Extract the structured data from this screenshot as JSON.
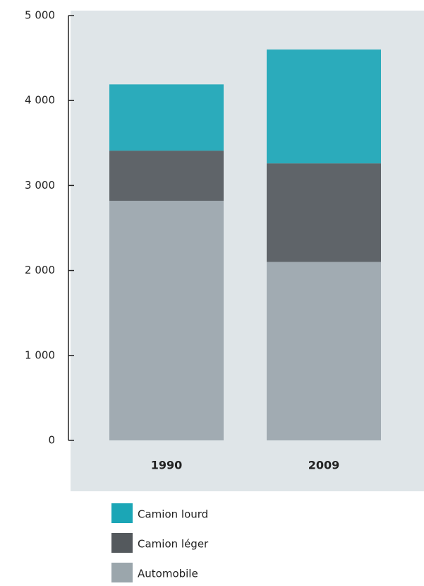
{
  "chart_data": {
    "type": "stacked-bar",
    "categories": [
      "1990",
      "2009"
    ],
    "series": [
      {
        "name": "Camion lourd",
        "color": "#1ba6b6",
        "values": [
          780,
          1340
        ]
      },
      {
        "name": "Camion léger",
        "color": "#54595d",
        "values": [
          590,
          1160
        ]
      },
      {
        "name": "Automobile",
        "color": "#9ba6ac",
        "values": [
          2820,
          2100
        ]
      }
    ],
    "ylim": [
      0,
      5000
    ],
    "yticks": [
      0,
      {
        "value": 1000,
        "label": "1 000"
      },
      {
        "value": 2000,
        "label": "2 000"
      },
      {
        "value": 3000,
        "label": "3 000"
      },
      {
        "value": 4000,
        "label": "4 000"
      },
      {
        "value": 5000,
        "label": "5 000"
      }
    ]
  }
}
